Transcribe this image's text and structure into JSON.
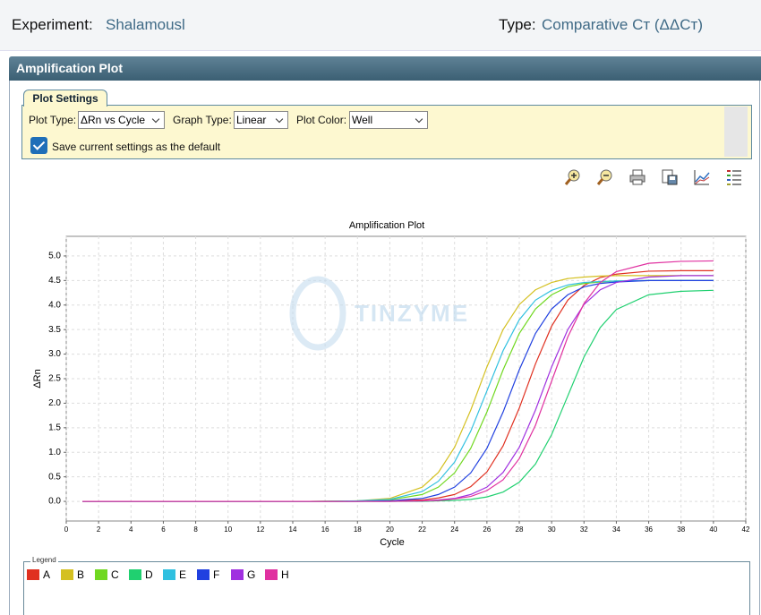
{
  "header": {
    "experiment_label": "Experiment:",
    "experiment": "Shalamousl",
    "type_label": "Type:",
    "type": "Comparative Cт (ΔΔCт)"
  },
  "panel": {
    "title": "Amplification Plot"
  },
  "settings": {
    "tab": "Plot Settings",
    "plot_type_label": "Plot Type:",
    "plot_type": "ΔRn vs Cycle",
    "graph_type_label": "Graph Type:",
    "graph_type": "Linear",
    "plot_color_label": "Plot Color:",
    "plot_color": "Well",
    "save_default": "Save current settings as the default"
  },
  "watermark": "TINZYME",
  "legend_title": "Legend",
  "chart_data": {
    "type": "line",
    "title": "Amplification Plot",
    "x_label": "Cycle",
    "y_label": "ΔRn",
    "x": [
      1,
      5,
      10,
      15,
      18,
      20,
      22,
      23,
      24,
      25,
      26,
      27,
      28,
      29,
      30,
      31,
      32,
      33,
      34,
      36,
      38,
      40
    ],
    "series": [
      {
        "name": "A",
        "color": "#e03020",
        "values": [
          0,
          0,
          0,
          0,
          0,
          0.01,
          0.03,
          0.07,
          0.14,
          0.3,
          0.6,
          1.13,
          1.9,
          2.8,
          3.57,
          4.1,
          4.4,
          4.56,
          4.63,
          4.69,
          4.7,
          4.7
        ]
      },
      {
        "name": "B",
        "color": "#d4c020",
        "values": [
          0,
          0,
          0,
          0,
          0.01,
          0.06,
          0.29,
          0.59,
          1.1,
          1.86,
          2.74,
          3.5,
          4.01,
          4.31,
          4.46,
          4.54,
          4.57,
          4.59,
          4.6,
          4.6,
          4.6,
          4.6
        ]
      },
      {
        "name": "C",
        "color": "#70d820",
        "values": [
          0,
          0,
          0,
          0,
          0.01,
          0.03,
          0.14,
          0.29,
          0.58,
          1.08,
          1.82,
          2.68,
          3.42,
          3.92,
          4.21,
          4.37,
          4.44,
          4.47,
          4.49,
          4.5,
          4.5,
          4.5
        ]
      },
      {
        "name": "D",
        "color": "#20d070",
        "values": [
          0,
          0,
          0,
          0,
          0,
          0,
          0,
          0.01,
          0.02,
          0.04,
          0.09,
          0.19,
          0.39,
          0.76,
          1.36,
          2.15,
          2.94,
          3.54,
          3.91,
          4.21,
          4.28,
          4.3
        ]
      },
      {
        "name": "E",
        "color": "#30c0e0",
        "values": [
          0,
          0,
          0,
          0,
          0.01,
          0.04,
          0.2,
          0.41,
          0.8,
          1.43,
          2.25,
          3.07,
          3.7,
          4.1,
          4.3,
          4.41,
          4.46,
          4.48,
          4.49,
          4.5,
          4.5,
          4.5
        ]
      },
      {
        "name": "F",
        "color": "#2040e0",
        "values": [
          0,
          0,
          0,
          0,
          0,
          0.01,
          0.06,
          0.14,
          0.29,
          0.58,
          1.08,
          1.82,
          2.68,
          3.42,
          3.92,
          4.21,
          4.37,
          4.44,
          4.47,
          4.5,
          4.5,
          4.5
        ]
      },
      {
        "name": "G",
        "color": "#a030e0",
        "values": [
          0,
          0,
          0,
          0,
          0,
          0,
          0.01,
          0.03,
          0.06,
          0.14,
          0.29,
          0.59,
          1.1,
          1.86,
          2.74,
          3.5,
          4.01,
          4.31,
          4.46,
          4.57,
          4.6,
          4.6
        ]
      },
      {
        "name": "H",
        "color": "#e030a0",
        "values": [
          0,
          0,
          0,
          0,
          0,
          0,
          0.01,
          0.02,
          0.05,
          0.1,
          0.22,
          0.44,
          0.87,
          1.55,
          2.45,
          3.35,
          4.03,
          4.46,
          4.68,
          4.85,
          4.89,
          4.9
        ]
      }
    ],
    "xlim": [
      0,
      42
    ],
    "xticks": [
      0,
      2,
      4,
      6,
      8,
      10,
      12,
      14,
      16,
      18,
      20,
      22,
      24,
      26,
      28,
      30,
      32,
      34,
      36,
      38,
      40,
      42
    ],
    "ylim": [
      -0.4,
      5.4
    ],
    "yticks": [
      {
        "value": 0,
        "label": "0.0"
      },
      0.5,
      {
        "value": 1,
        "label": "1.0"
      },
      1.5,
      {
        "value": 2,
        "label": "2.0"
      },
      2.5,
      {
        "value": 3,
        "label": "3.0"
      },
      3.5,
      {
        "value": 4,
        "label": "4.0"
      },
      4.5,
      {
        "value": 5,
        "label": "5.0"
      }
    ],
    "grid": true,
    "legend": "bottom"
  }
}
